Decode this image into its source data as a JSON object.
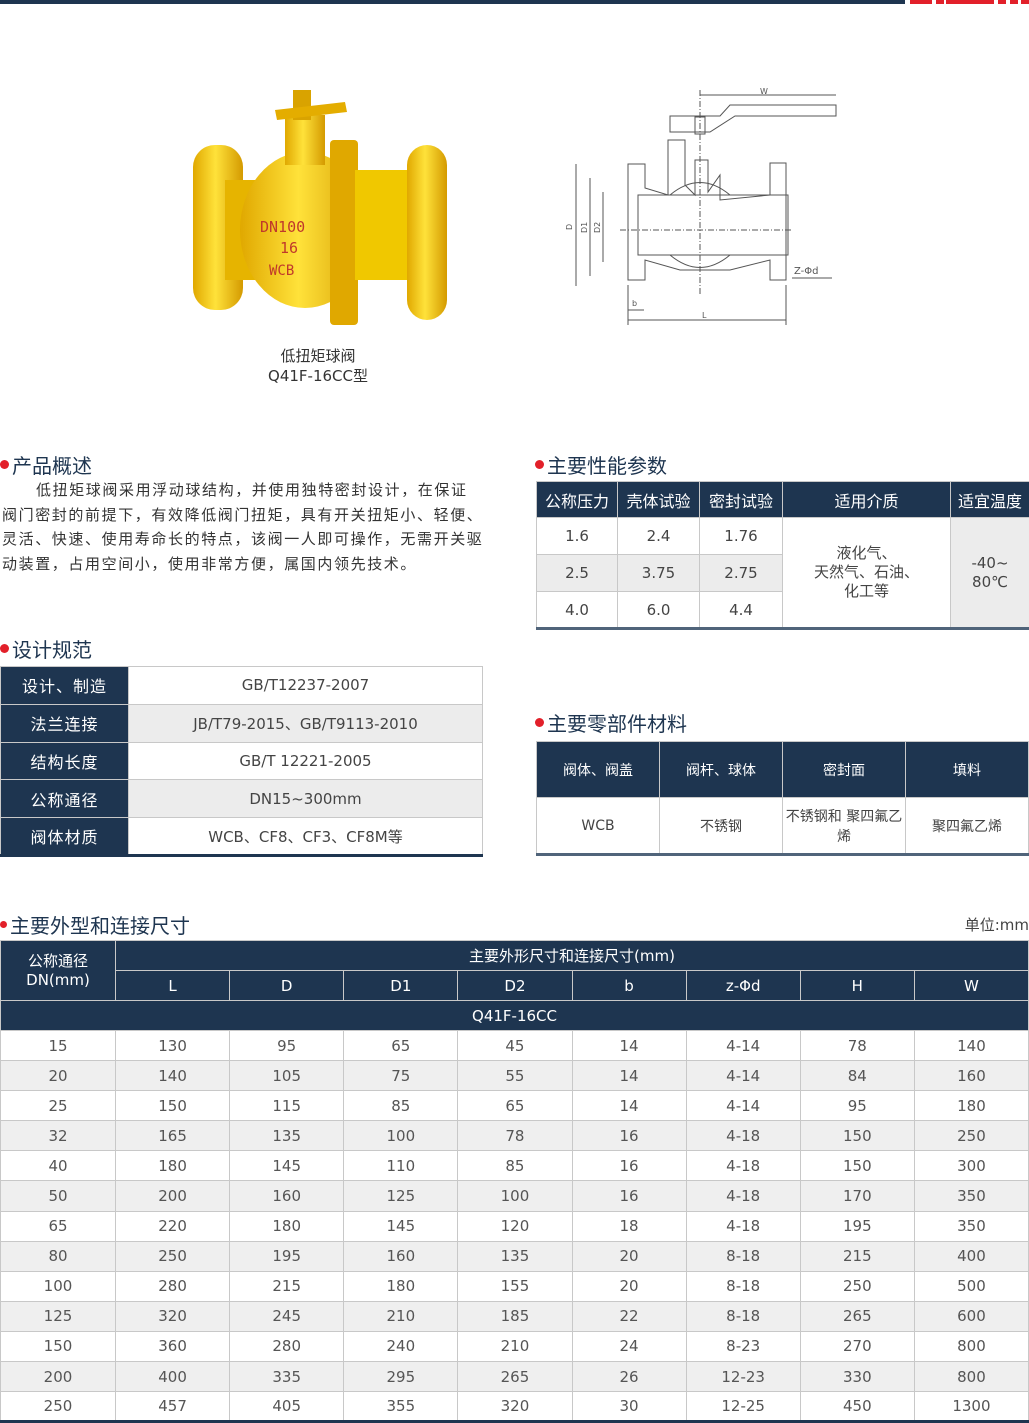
{
  "colors": {
    "navy": "#1e3550",
    "red": "#e2202a",
    "valve_yellow": "#f5d400"
  },
  "product": {
    "caption_line1": "低扭矩球阀",
    "caption_line2": "Q41F-16CC型",
    "photo_markings": [
      "DN100",
      "16",
      "WCB"
    ]
  },
  "drawing": {
    "labels": [
      "W",
      "D",
      "D1",
      "D2",
      "Z-Φd",
      "b",
      "L"
    ]
  },
  "overview": {
    "title": "产品概述",
    "text": "低扭矩球阀采用浮动球结构，并使用独特密封设计，在保证阀门密封的前提下，有效降低阀门扭矩，具有开关扭矩小、轻便、灵活、快速、使用寿命长的特点，该阀一人即可操作，无需开关驱动装置，占用空间小，使用非常方便，属国内领先技术。"
  },
  "design": {
    "title": "设计规范",
    "rows": [
      {
        "label": "设计、制造",
        "value": "GB/T12237-2007"
      },
      {
        "label": "法兰连接",
        "value": "JB/T79-2015、GB/T9113-2010"
      },
      {
        "label": "结构长度",
        "value": "GB/T 12221-2005"
      },
      {
        "label": "公称通径",
        "value": "DN15~300mm"
      },
      {
        "label": "阀体材质",
        "value": "WCB、CF8、CF3、CF8M等"
      }
    ]
  },
  "performance": {
    "title": "主要性能参数",
    "headers": [
      "公称压力",
      "壳体试验",
      "密封试验",
      "适用介质",
      "适宜温度"
    ],
    "rows": [
      [
        "1.6",
        "2.4",
        "1.76"
      ],
      [
        "2.5",
        "3.75",
        "2.75"
      ],
      [
        "4.0",
        "6.0",
        "4.4"
      ]
    ],
    "medium": [
      "液化气、",
      "天然气、石油、",
      "化工等"
    ],
    "temperature": [
      "-40~",
      "80℃"
    ]
  },
  "materials": {
    "title": "主要零部件材料",
    "headers": [
      "阀体、阀盖",
      "阀杆、球体",
      "密封面",
      "填料"
    ],
    "values": [
      "WCB",
      "不锈钢",
      "不锈钢和 聚四氟乙烯",
      "聚四氟乙烯"
    ]
  },
  "dimensions": {
    "title": "主要外型和连接尺寸",
    "unit": "单位:mm",
    "dn_header": "公称通径 DN(mm)",
    "group_header": "主要外形尺寸和连接尺寸(mm)",
    "columns": [
      "L",
      "D",
      "D1",
      "D2",
      "b",
      "z-Φd",
      "H",
      "W"
    ],
    "model": "Q41F-16CC",
    "rows": [
      [
        "15",
        "130",
        "95",
        "65",
        "45",
        "14",
        "4-14",
        "78",
        "140"
      ],
      [
        "20",
        "140",
        "105",
        "75",
        "55",
        "14",
        "4-14",
        "84",
        "160"
      ],
      [
        "25",
        "150",
        "115",
        "85",
        "65",
        "14",
        "4-14",
        "95",
        "180"
      ],
      [
        "32",
        "165",
        "135",
        "100",
        "78",
        "16",
        "4-18",
        "150",
        "250"
      ],
      [
        "40",
        "180",
        "145",
        "110",
        "85",
        "16",
        "4-18",
        "150",
        "300"
      ],
      [
        "50",
        "200",
        "160",
        "125",
        "100",
        "16",
        "4-18",
        "170",
        "350"
      ],
      [
        "65",
        "220",
        "180",
        "145",
        "120",
        "18",
        "4-18",
        "195",
        "350"
      ],
      [
        "80",
        "250",
        "195",
        "160",
        "135",
        "20",
        "8-18",
        "215",
        "400"
      ],
      [
        "100",
        "280",
        "215",
        "180",
        "155",
        "20",
        "8-18",
        "250",
        "500"
      ],
      [
        "125",
        "320",
        "245",
        "210",
        "185",
        "22",
        "8-18",
        "265",
        "600"
      ],
      [
        "150",
        "360",
        "280",
        "240",
        "210",
        "24",
        "8-23",
        "270",
        "800"
      ],
      [
        "200",
        "400",
        "335",
        "295",
        "265",
        "26",
        "12-23",
        "330",
        "800"
      ],
      [
        "250",
        "457",
        "405",
        "355",
        "320",
        "30",
        "12-25",
        "450",
        "1300"
      ]
    ]
  }
}
